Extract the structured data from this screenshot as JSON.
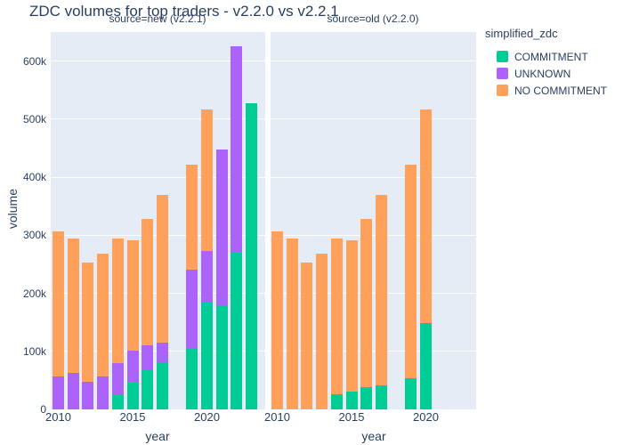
{
  "title": "ZDC volumes for top traders - v2.2.0 vs v2.2.1",
  "legend": {
    "title": "simplified_zdc",
    "items": [
      {
        "label": "COMMITMENT",
        "color": "#00CC96"
      },
      {
        "label": "UNKNOWN",
        "color": "#AB63FA"
      },
      {
        "label": "NO COMMITMENT",
        "color": "#FFA15A"
      }
    ]
  },
  "colors": {
    "panel_background": "#E5ECF6",
    "text": "#2A3F5F",
    "gridline": "#FFFFFF",
    "commitment": "#00CC96",
    "unknown": "#AB63FA",
    "no_commitment": "#FFA15A"
  },
  "chart_data": {
    "type": "bar",
    "stacked": true,
    "title": "ZDC volumes for top traders - v2.2.0 vs v2.2.1",
    "xlabel": "year",
    "ylabel": "volume",
    "legend_title": "simplified_zdc",
    "ylim": [
      0,
      650000
    ],
    "grid": true,
    "legend_position": "right",
    "yticks": [
      {
        "value": 0,
        "label": "0"
      },
      {
        "value": 100000,
        "label": "100k"
      },
      {
        "value": 200000,
        "label": "200k"
      },
      {
        "value": 300000,
        "label": "300k"
      },
      {
        "value": 400000,
        "label": "400k"
      },
      {
        "value": 500000,
        "label": "500k"
      },
      {
        "value": 600000,
        "label": "600k"
      }
    ],
    "xticks": [
      {
        "value": 2010,
        "label": "2010"
      },
      {
        "value": 2015,
        "label": "2015"
      },
      {
        "value": 2020,
        "label": "2020"
      }
    ],
    "facets": [
      {
        "label": "source=new (v2.2.1)",
        "years": [
          2010,
          2011,
          2012,
          2013,
          2014,
          2015,
          2016,
          2017,
          2019,
          2020,
          2021,
          2022,
          2023
        ],
        "series": [
          {
            "name": "COMMITMENT",
            "color": "#00CC96",
            "values": [
              0,
              0,
              0,
              0,
              26000,
              48000,
              68000,
              82000,
              105000,
              186000,
              179000,
              271000,
              527000
            ]
          },
          {
            "name": "UNKNOWN",
            "color": "#AB63FA",
            "values": [
              57000,
              63000,
              47000,
              57000,
              53000,
              53000,
              43000,
              33000,
              136000,
              87000,
              269000,
              354000,
              0
            ]
          },
          {
            "name": "NO COMMITMENT",
            "color": "#FFA15A",
            "values": [
              250000,
              231000,
              206000,
              211000,
              216000,
              190000,
              217000,
              254000,
              180000,
              243000,
              0,
              0,
              0
            ]
          }
        ]
      },
      {
        "label": "source=old (v2.2.0)",
        "years": [
          2010,
          2011,
          2012,
          2013,
          2014,
          2015,
          2016,
          2017,
          2019,
          2020
        ],
        "series": [
          {
            "name": "COMMITMENT",
            "color": "#00CC96",
            "values": [
              0,
              0,
              0,
              0,
              26000,
              30000,
              38000,
              42000,
              54000,
              148000
            ]
          },
          {
            "name": "UNKNOWN",
            "color": "#AB63FA",
            "values": [
              0,
              0,
              0,
              0,
              0,
              0,
              0,
              0,
              0,
              0
            ]
          },
          {
            "name": "NO COMMITMENT",
            "color": "#FFA15A",
            "values": [
              307000,
              294000,
              253000,
              268000,
              269000,
              261000,
              290000,
              327000,
              367000,
              368000
            ]
          }
        ]
      }
    ]
  }
}
